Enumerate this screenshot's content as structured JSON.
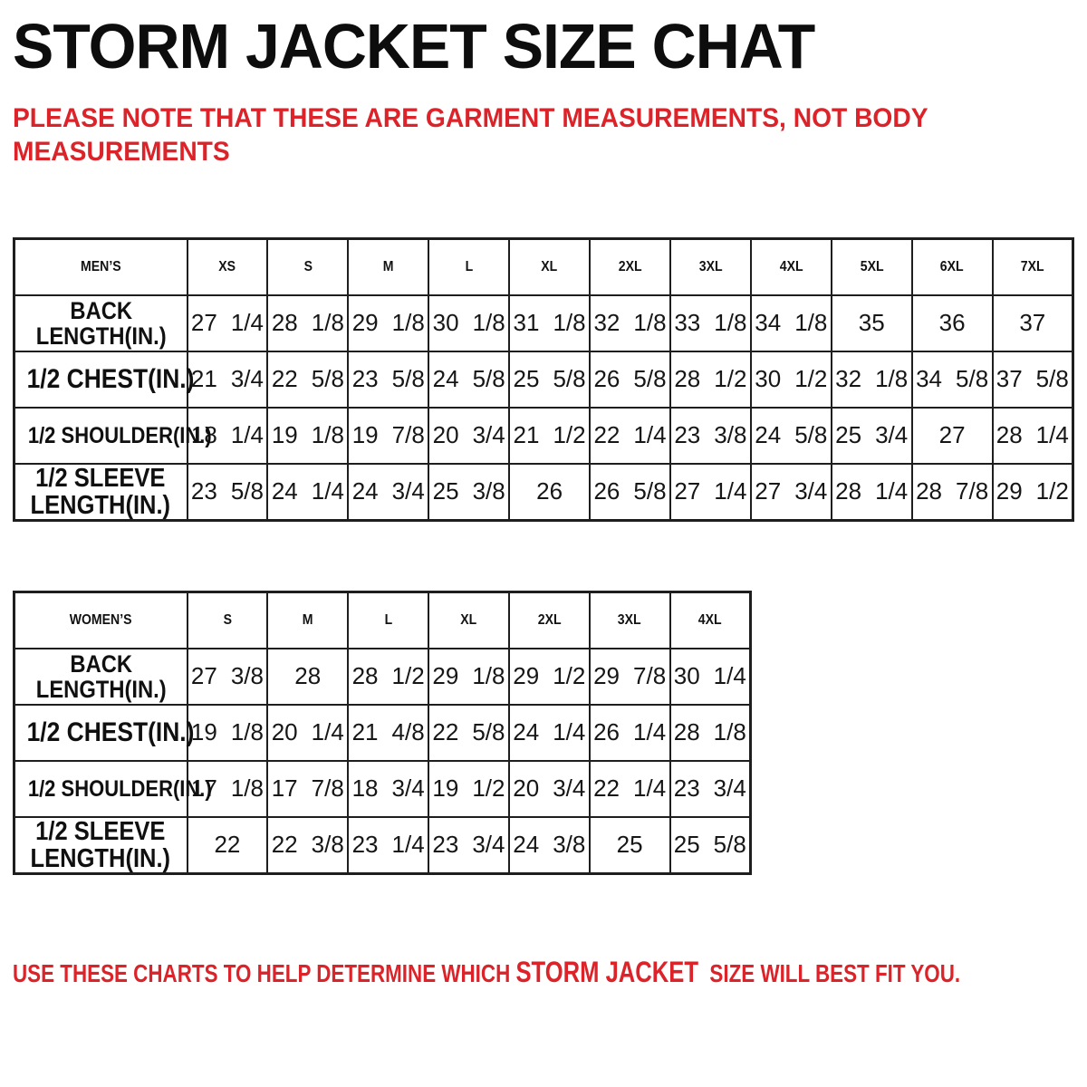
{
  "title": "STORM JACKET SIZE CHAT",
  "note_lines": [
    "PLEASE NOTE THAT THESE ARE GARMENT MEASUREMENTS, NOT BODY",
    "MEASUREMENTS"
  ],
  "footer": {
    "prefix": "USE THESE CHARTS TO HELP DETERMINE WHICH ",
    "product": "STORM JACKET",
    "suffix": "  SIZE WILL BEST FIT YOU."
  },
  "colors": {
    "accent_red": "#DC2329",
    "header_gray": "#767676",
    "header_text": "#FFFFFF",
    "table_border": "#1E1E1E"
  },
  "tables": [
    {
      "id": "mens",
      "title": "MEN’S",
      "sizes": [
        "XS",
        "S",
        "M",
        "L",
        "XL",
        "2XL",
        "3XL",
        "4XL",
        "5XL",
        "6XL",
        "7XL"
      ],
      "rows": [
        {
          "label_lines": [
            "BACK",
            "LENGTH(IN.)"
          ],
          "values": [
            "27 1/4",
            "28 1/8",
            "29 1/8",
            "30 1/8",
            "31 1/8",
            "32 1/8",
            "33 1/8",
            "34 1/8",
            "35",
            "36",
            "37"
          ]
        },
        {
          "label_lines": [
            "1/2 CHEST(IN.)"
          ],
          "values": [
            "21 3/4",
            "22 5/8",
            "23 5/8",
            "24 5/8",
            "25 5/8",
            "26 5/8",
            "28 1/2",
            "30 1/2",
            "32 1/8",
            "34 5/8",
            "37 5/8"
          ]
        },
        {
          "label_lines": [
            "1/2 SHOULDER(IN.)"
          ],
          "values": [
            "18 1/4",
            "19 1/8",
            "19 7/8",
            "20 3/4",
            "21 1/2",
            "22 1/4",
            "23 3/8",
            "24 5/8",
            "25 3/4",
            "27",
            "28 1/4"
          ]
        },
        {
          "label_lines": [
            "1/2 SLEEVE",
            "LENGTH(IN.)"
          ],
          "values": [
            "23 5/8",
            "24 1/4",
            "24 3/4",
            "25 3/8",
            "26",
            "26 5/8",
            "27 1/4",
            "27 3/4",
            "28 1/4",
            "28 7/8",
            "29 1/2"
          ]
        }
      ]
    },
    {
      "id": "womens",
      "title": "WOMEN’S",
      "sizes": [
        "S",
        "M",
        "L",
        "XL",
        "2XL",
        "3XL",
        "4XL"
      ],
      "rows": [
        {
          "label_lines": [
            "BACK",
            "LENGTH(IN.)"
          ],
          "values": [
            "27 3/8",
            "28",
            "28 1/2",
            "29 1/8",
            "29 1/2",
            "29 7/8",
            "30 1/4"
          ]
        },
        {
          "label_lines": [
            "1/2 CHEST(IN.)"
          ],
          "values": [
            "19 1/8",
            "20 1/4",
            "21 4/8",
            "22 5/8",
            "24 1/4",
            "26 1/4",
            "28 1/8"
          ]
        },
        {
          "label_lines": [
            "1/2 SHOULDER(IN.)"
          ],
          "values": [
            "17 1/8",
            "17 7/8",
            "18 3/4",
            "19 1/2",
            "20 3/4",
            "22 1/4",
            "23 3/4"
          ]
        },
        {
          "label_lines": [
            "1/2 SLEEVE",
            "LENGTH(IN.)"
          ],
          "values": [
            "22",
            "22 3/8",
            "23 1/4",
            "23 3/4",
            "24 3/8",
            "25",
            "25 5/8"
          ]
        }
      ]
    }
  ]
}
